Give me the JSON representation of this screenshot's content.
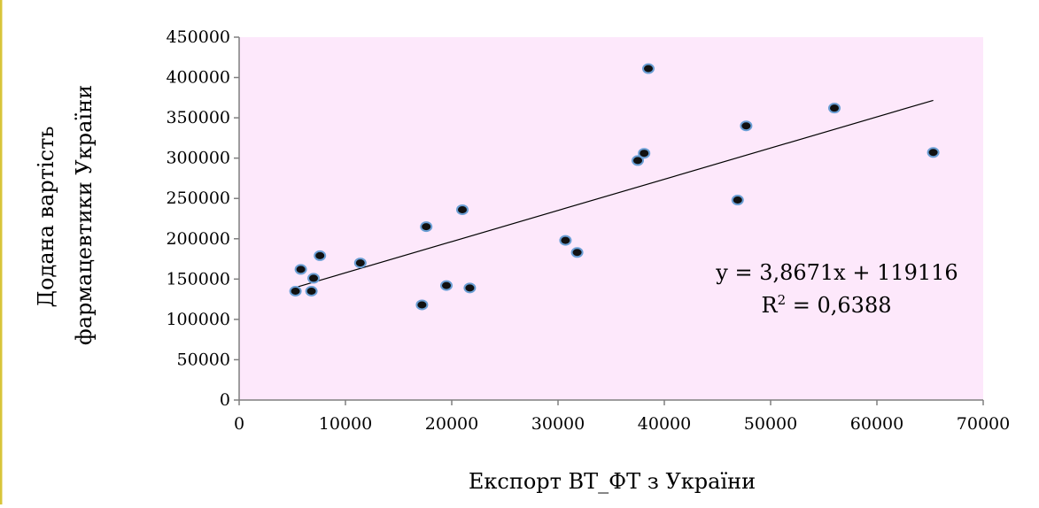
{
  "chart_data": {
    "type": "scatter",
    "xlabel": "Експорт ВТ_ФТ  з  України",
    "ylabel_lines": [
      "Додана вартість",
      "фармацевтики України"
    ],
    "xlim": [
      0,
      70000
    ],
    "ylim": [
      0,
      450000
    ],
    "x_ticks": [
      0,
      10000,
      20000,
      30000,
      40000,
      50000,
      60000,
      70000
    ],
    "y_ticks": [
      0,
      50000,
      100000,
      150000,
      200000,
      250000,
      300000,
      350000,
      400000,
      450000
    ],
    "grid": false,
    "legend": "none",
    "points": [
      {
        "x": 5300,
        "y": 135000
      },
      {
        "x": 5800,
        "y": 162000
      },
      {
        "x": 6800,
        "y": 135000
      },
      {
        "x": 7000,
        "y": 151000
      },
      {
        "x": 7600,
        "y": 179000
      },
      {
        "x": 11400,
        "y": 170000
      },
      {
        "x": 17200,
        "y": 118000
      },
      {
        "x": 17600,
        "y": 215000
      },
      {
        "x": 19500,
        "y": 142000
      },
      {
        "x": 21000,
        "y": 236000
      },
      {
        "x": 21700,
        "y": 139000
      },
      {
        "x": 30700,
        "y": 198000
      },
      {
        "x": 31800,
        "y": 183000
      },
      {
        "x": 37500,
        "y": 297000
      },
      {
        "x": 38100,
        "y": 306000
      },
      {
        "x": 38500,
        "y": 411000
      },
      {
        "x": 46900,
        "y": 248000
      },
      {
        "x": 47700,
        "y": 340000
      },
      {
        "x": 56000,
        "y": 362000
      },
      {
        "x": 65300,
        "y": 307000
      }
    ],
    "trendline": {
      "type": "linear",
      "slope": 3.8671,
      "intercept": 119116,
      "x_range": [
        5300,
        65300
      ],
      "equation_label": "y = 3,8671x + 119116",
      "r2_prefix": "R",
      "r2_exponent": "2",
      "r2_value": " = 0,6388"
    },
    "colors": {
      "plot_background": "#fde8fb",
      "marker_fill": "#111111",
      "marker_outline": "#6a9ed4",
      "trendline": "#000000",
      "left_border_accent": "#d8c53a"
    }
  }
}
